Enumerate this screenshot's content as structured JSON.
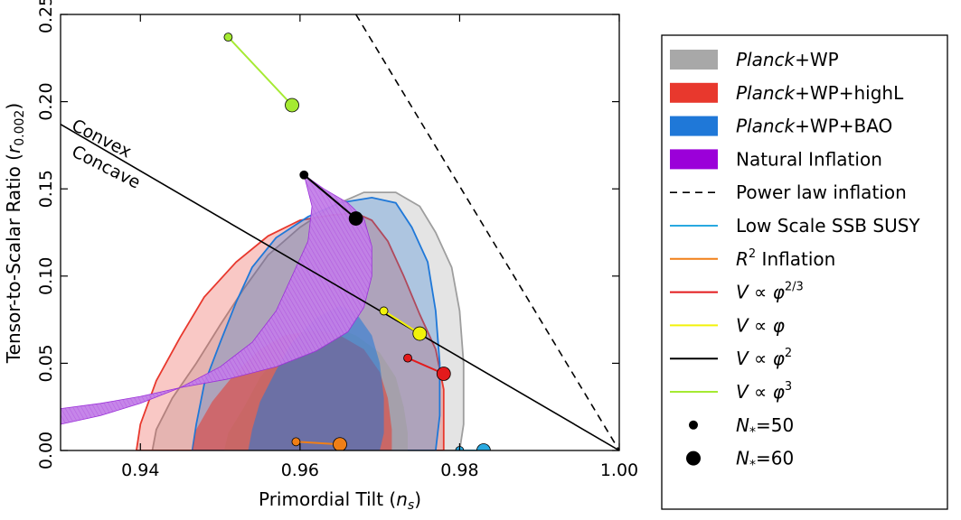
{
  "chart_data": {
    "type": "scatter",
    "xlabel": "Primordial Tilt (n_s)",
    "ylabel": "Tensor-to-Scalar Ratio (r_0.002)",
    "xlim": [
      0.93,
      1.0
    ],
    "ylim": [
      0.0,
      0.25
    ],
    "xticks": [
      "0.94",
      "0.96",
      "0.98",
      "1.00"
    ],
    "yticks": [
      "0.00",
      "0.05",
      "0.10",
      "0.15",
      "0.20",
      "0.25"
    ],
    "grid": false,
    "legend_placement": "outside-right",
    "annotations": [
      {
        "text": "Convex"
      },
      {
        "text": "Concave"
      }
    ],
    "dividing_line": {
      "points": [
        [
          0.93,
          0.187
        ],
        [
          1.0,
          0.0
        ]
      ],
      "color": "#000000"
    },
    "contours": [
      {
        "name": "Planck+WP",
        "color": "#9e9e9e",
        "outer": [
          [
            0.9415,
            0
          ],
          [
            0.942,
            0.012
          ],
          [
            0.944,
            0.03
          ],
          [
            0.947,
            0.05
          ],
          [
            0.95,
            0.072
          ],
          [
            0.953,
            0.093
          ],
          [
            0.956,
            0.112
          ],
          [
            0.96,
            0.128
          ],
          [
            0.964,
            0.14
          ],
          [
            0.968,
            0.148
          ],
          [
            0.972,
            0.148
          ],
          [
            0.975,
            0.14
          ],
          [
            0.977,
            0.125
          ],
          [
            0.979,
            0.105
          ],
          [
            0.98,
            0.08
          ],
          [
            0.9805,
            0.05
          ],
          [
            0.9805,
            0.015
          ],
          [
            0.98,
            0
          ]
        ],
        "inner": [
          [
            0.9505,
            0
          ],
          [
            0.951,
            0.01
          ],
          [
            0.953,
            0.025
          ],
          [
            0.955,
            0.042
          ],
          [
            0.958,
            0.058
          ],
          [
            0.961,
            0.069
          ],
          [
            0.964,
            0.071
          ],
          [
            0.967,
            0.066
          ],
          [
            0.97,
            0.056
          ],
          [
            0.972,
            0.042
          ],
          [
            0.973,
            0.025
          ],
          [
            0.9735,
            0.01
          ],
          [
            0.9735,
            0
          ]
        ]
      },
      {
        "name": "Planck+WP+highL",
        "color": "#e8382d",
        "outer": [
          [
            0.9395,
            0
          ],
          [
            0.94,
            0.015
          ],
          [
            0.942,
            0.04
          ],
          [
            0.945,
            0.065
          ],
          [
            0.948,
            0.088
          ],
          [
            0.952,
            0.108
          ],
          [
            0.956,
            0.123
          ],
          [
            0.96,
            0.132
          ],
          [
            0.964,
            0.135
          ],
          [
            0.967,
            0.136
          ],
          [
            0.969,
            0.132
          ],
          [
            0.971,
            0.12
          ],
          [
            0.973,
            0.1
          ],
          [
            0.975,
            0.078
          ],
          [
            0.977,
            0.058
          ],
          [
            0.978,
            0.035
          ],
          [
            0.978,
            0.01
          ],
          [
            0.978,
            0
          ]
        ],
        "inner": [
          [
            0.9465,
            0
          ],
          [
            0.947,
            0.012
          ],
          [
            0.949,
            0.028
          ],
          [
            0.952,
            0.045
          ],
          [
            0.955,
            0.058
          ],
          [
            0.958,
            0.066
          ],
          [
            0.962,
            0.069
          ],
          [
            0.965,
            0.066
          ],
          [
            0.968,
            0.058
          ],
          [
            0.97,
            0.045
          ],
          [
            0.971,
            0.03
          ],
          [
            0.9715,
            0.012
          ],
          [
            0.9715,
            0
          ]
        ]
      },
      {
        "name": "Planck+WP+BAO",
        "color": "#1f78d8",
        "outer": [
          [
            0.9465,
            0
          ],
          [
            0.947,
            0.015
          ],
          [
            0.948,
            0.038
          ],
          [
            0.95,
            0.062
          ],
          [
            0.952,
            0.085
          ],
          [
            0.954,
            0.105
          ],
          [
            0.957,
            0.122
          ],
          [
            0.961,
            0.134
          ],
          [
            0.965,
            0.142
          ],
          [
            0.969,
            0.145
          ],
          [
            0.972,
            0.142
          ],
          [
            0.974,
            0.128
          ],
          [
            0.976,
            0.108
          ],
          [
            0.977,
            0.08
          ],
          [
            0.9775,
            0.05
          ],
          [
            0.9775,
            0.02
          ],
          [
            0.977,
            0
          ]
        ],
        "inner": [
          [
            0.9535,
            0
          ],
          [
            0.954,
            0.012
          ],
          [
            0.955,
            0.028
          ],
          [
            0.957,
            0.046
          ],
          [
            0.959,
            0.062
          ],
          [
            0.962,
            0.076
          ],
          [
            0.965,
            0.083
          ],
          [
            0.967,
            0.079
          ],
          [
            0.969,
            0.066
          ],
          [
            0.97,
            0.05
          ],
          [
            0.9705,
            0.03
          ],
          [
            0.9705,
            0.01
          ],
          [
            0.97,
            0
          ]
        ]
      },
      {
        "name": "Natural Inflation",
        "color": "#9b30d9",
        "polygon": [
          [
            0.93,
            0.015
          ],
          [
            0.935,
            0.02
          ],
          [
            0.94,
            0.027
          ],
          [
            0.945,
            0.036
          ],
          [
            0.95,
            0.048
          ],
          [
            0.954,
            0.062
          ],
          [
            0.957,
            0.08
          ],
          [
            0.959,
            0.1
          ],
          [
            0.961,
            0.12
          ],
          [
            0.9615,
            0.14
          ],
          [
            0.9605,
            0.158
          ],
          [
            0.963,
            0.15
          ],
          [
            0.966,
            0.142
          ],
          [
            0.968,
            0.133
          ],
          [
            0.969,
            0.117
          ],
          [
            0.969,
            0.1
          ],
          [
            0.968,
            0.082
          ],
          [
            0.966,
            0.068
          ],
          [
            0.962,
            0.057
          ],
          [
            0.957,
            0.048
          ],
          [
            0.951,
            0.041
          ],
          [
            0.945,
            0.036
          ],
          [
            0.94,
            0.031
          ],
          [
            0.935,
            0.027
          ],
          [
            0.93,
            0.024
          ]
        ]
      }
    ],
    "model_lines": [
      {
        "name": "Power law inflation",
        "color": "#000000",
        "dashed": true,
        "points": [
          [
            0.967,
            0.25
          ],
          [
            1.0,
            0.0
          ]
        ]
      },
      {
        "name": "Low Scale SSB SUSY",
        "color": "#29a9e0",
        "points": [
          [
            0.98,
            0.0
          ],
          [
            0.983,
            0.0
          ]
        ]
      },
      {
        "name": "R^2 Inflation",
        "color": "#f07f17",
        "points": [
          [
            0.9595,
            0.005
          ],
          [
            0.965,
            0.0035
          ]
        ]
      },
      {
        "name": "V ∝ φ^(2/3)",
        "color": "#e31a1c",
        "points": [
          [
            0.9735,
            0.053
          ],
          [
            0.978,
            0.044
          ]
        ]
      },
      {
        "name": "V ∝ φ",
        "color": "#f2f20a",
        "points": [
          [
            0.9705,
            0.08
          ],
          [
            0.975,
            0.067
          ]
        ]
      },
      {
        "name": "V ∝ φ^2",
        "color": "#000000",
        "points": [
          [
            0.9605,
            0.158
          ],
          [
            0.967,
            0.133
          ]
        ]
      },
      {
        "name": "V ∝ φ^3",
        "color": "#a5ea32",
        "points": [
          [
            0.951,
            0.237
          ],
          [
            0.959,
            0.198
          ]
        ]
      }
    ],
    "efolds": [
      {
        "name": "N*=50",
        "size": "small"
      },
      {
        "name": "N*=60",
        "size": "large"
      }
    ],
    "legend": [
      {
        "kind": "patch",
        "color": "#a8a8a8",
        "italic": "Planck",
        "label": "+WP"
      },
      {
        "kind": "patch",
        "color": "#e8382d",
        "italic": "Planck",
        "label": "+WP+highL"
      },
      {
        "kind": "patch",
        "color": "#1f78d8",
        "italic": "Planck",
        "label": "+WP+BAO"
      },
      {
        "kind": "patch",
        "color": "#9b00d9",
        "italic": "",
        "label": "Natural Inflation"
      },
      {
        "kind": "dash",
        "color": "#000000",
        "italic": "",
        "label": "Power law inflation"
      },
      {
        "kind": "line",
        "color": "#29a9e0",
        "italic": "",
        "label": "Low Scale SSB SUSY"
      },
      {
        "kind": "line",
        "color": "#f07f17",
        "italic": "R",
        "label": " Inflation",
        "sup": "2"
      },
      {
        "kind": "line",
        "color": "#e31a1c",
        "italic": "V",
        "label": " ∝ ",
        "italic2": "φ",
        "sup": "2/3"
      },
      {
        "kind": "line",
        "color": "#f2f20a",
        "italic": "V",
        "label": " ∝ ",
        "italic2": "φ",
        "sup": ""
      },
      {
        "kind": "line",
        "color": "#000000",
        "italic": "V",
        "label": " ∝ ",
        "italic2": "φ",
        "sup": "2"
      },
      {
        "kind": "line",
        "color": "#a5ea32",
        "italic": "V",
        "label": " ∝ ",
        "italic2": "φ",
        "sup": "3"
      },
      {
        "kind": "dot-small",
        "color": "#000000",
        "italic": "N",
        "sub": "*",
        "label": "=50"
      },
      {
        "kind": "dot-large",
        "color": "#000000",
        "italic": "N",
        "sub": "*",
        "label": "=60"
      }
    ]
  }
}
